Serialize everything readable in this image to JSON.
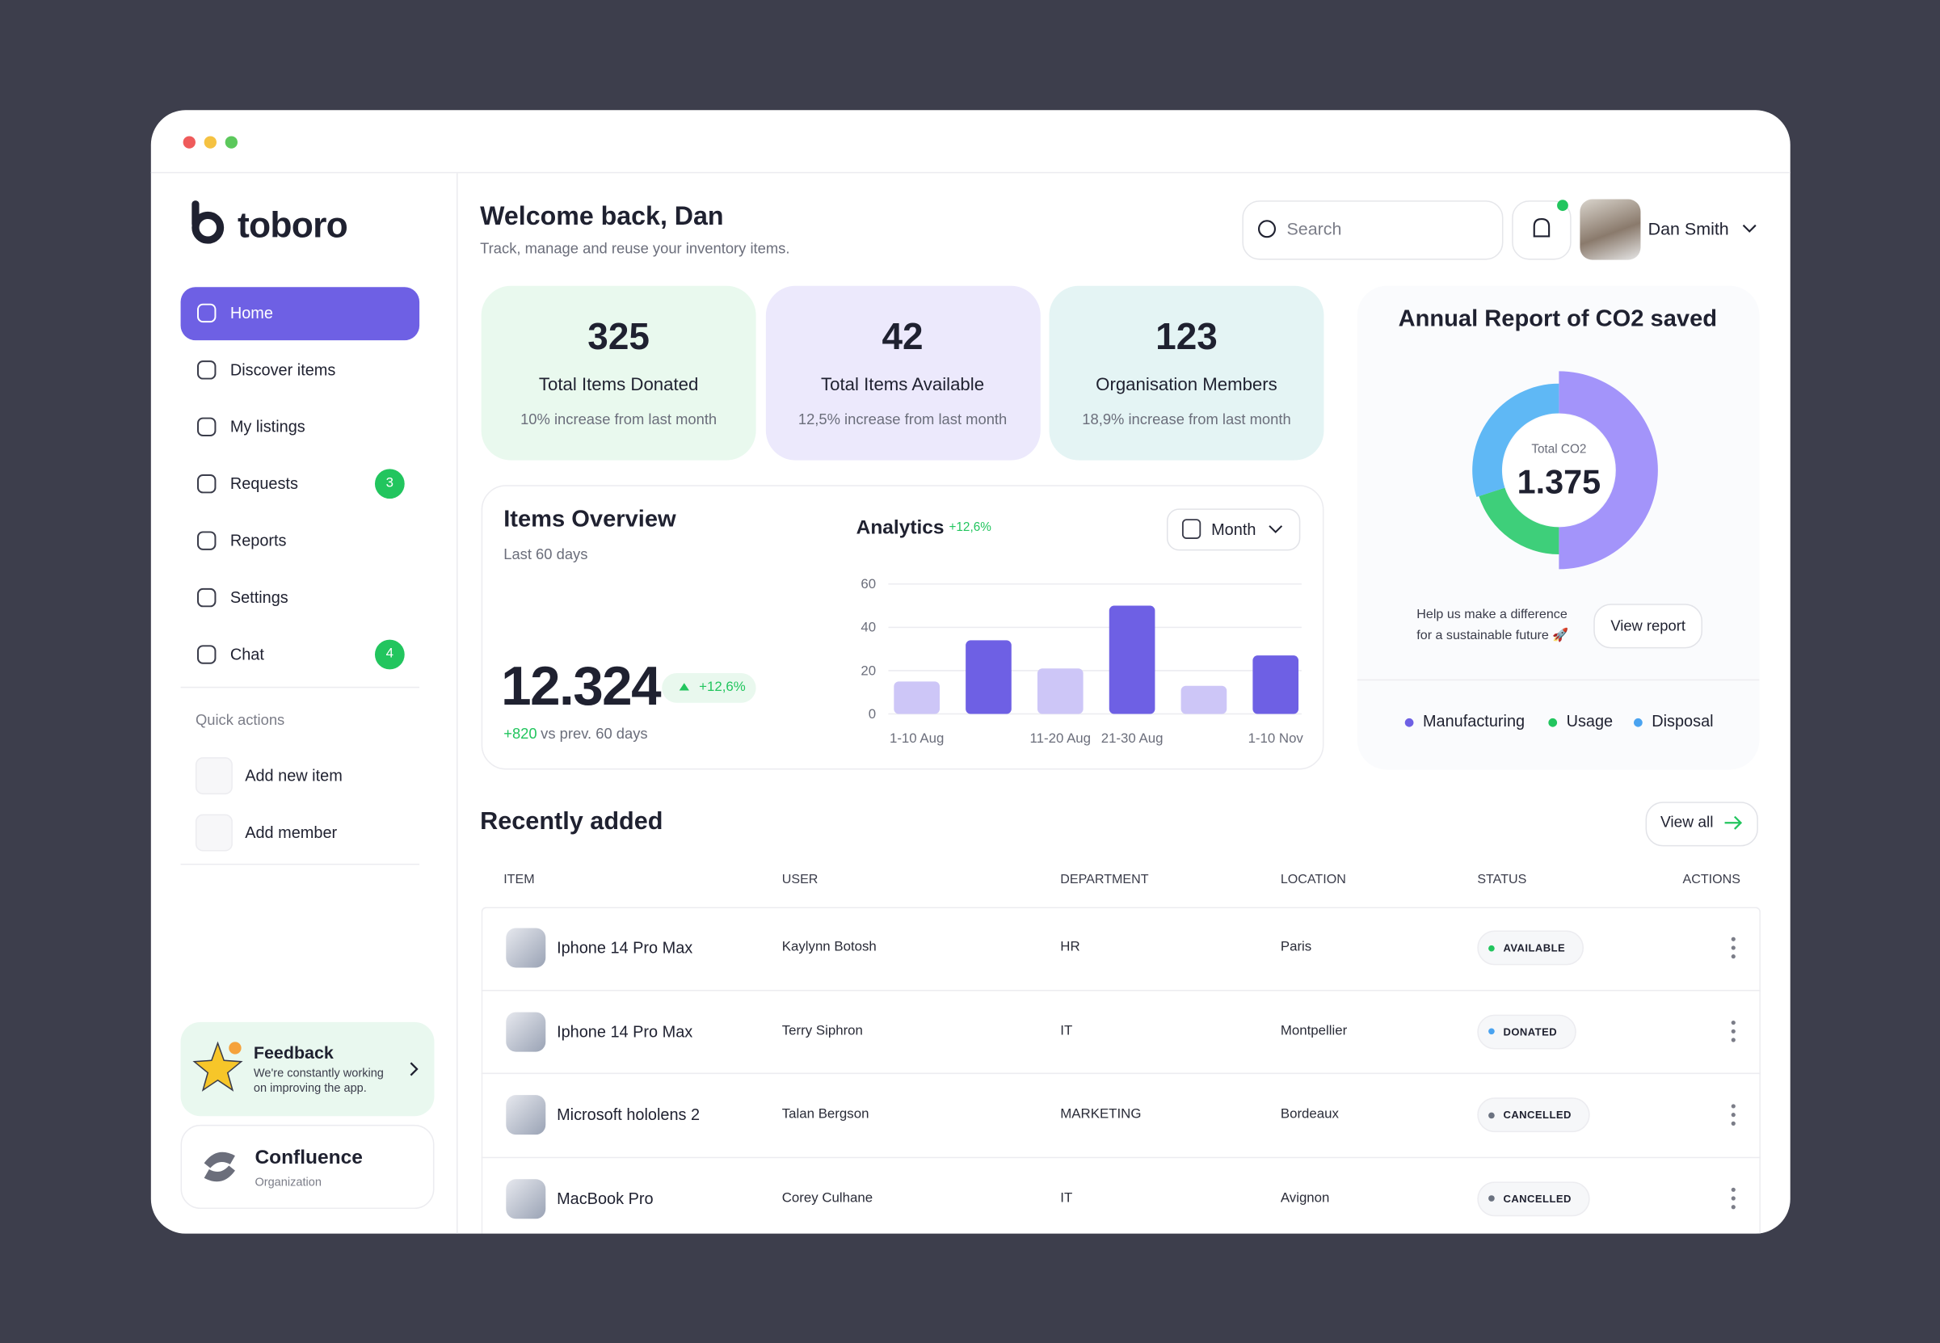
{
  "brand": "toboro",
  "nav": [
    {
      "label": "Home",
      "active": true
    },
    {
      "label": "Discover items"
    },
    {
      "label": "My listings"
    },
    {
      "label": "Requests",
      "badge": 3
    },
    {
      "label": "Reports"
    },
    {
      "label": "Settings"
    },
    {
      "label": "Chat",
      "badge": 4
    }
  ],
  "quick_actions": {
    "title": "Quick actions",
    "items": [
      "Add new item",
      "Add member"
    ]
  },
  "feedback": {
    "title": "Feedback",
    "text": [
      "We're constantly working",
      "on improving the app."
    ]
  },
  "org": {
    "name": "Confluence",
    "type": "Organization"
  },
  "header": {
    "title": "Welcome back, Dan",
    "subtitle": "Track, manage and reuse your inventory items.",
    "search_placeholder": "Search",
    "user": "Dan Smith"
  },
  "stats": [
    {
      "value": 325,
      "label": "Total Items Donated",
      "note": "10% increase from last month",
      "color": "#e9f9ee"
    },
    {
      "value": 42,
      "label": "Total Items Available",
      "note": "12,5% increase from last month",
      "color": "#ece9fc"
    },
    {
      "value": 123,
      "label": "Organisation Members",
      "note": "18,9% increase from last month",
      "color": "#e4f4f4"
    }
  ],
  "overview": {
    "title": "Items Overview",
    "period": "Last 60 days",
    "total": "12.324",
    "change": "+12,6%",
    "delta": "+820",
    "delta_text": "vs prev. 60 days"
  },
  "chart_data": [
    {
      "type": "bar",
      "title": "Analytics",
      "annotation": "+12,6%",
      "filter": "Month",
      "categories": [
        "1-10 Aug",
        null,
        "11-20 Aug",
        "21-30 Aug",
        null,
        "1-10 Nov"
      ],
      "values": [
        15,
        34,
        21,
        50,
        13,
        27
      ],
      "colors": [
        "#cdc6f7",
        "#6e60e4",
        "#cdc6f7",
        "#6e60e4",
        "#cdc6f7",
        "#6e60e4"
      ],
      "ylim": [
        0,
        60
      ],
      "yticks": [
        0,
        20,
        40,
        60
      ],
      "grid": true
    },
    {
      "type": "pie",
      "title": "Annual Report of CO2 saved",
      "center_label": "Total CO2",
      "center_value": "1.375",
      "categories": [
        "Manufacturing",
        "Usage",
        "Disposal"
      ],
      "values": [
        50,
        20,
        30
      ],
      "colors": [
        "#a394fa",
        "#3ecf7a",
        "#5fb8f5"
      ],
      "legend_colors": [
        "#6e60e4",
        "#22c55e",
        "#4aa3f0"
      ],
      "note": [
        "Help us make a difference",
        "for a sustainable future 🚀"
      ],
      "button": "View report"
    }
  ],
  "table": {
    "title": "Recently added",
    "view_all": "View all",
    "columns": [
      "ITEM",
      "USER",
      "DEPARTMENT",
      "LOCATION",
      "STATUS",
      "ACTIONS"
    ],
    "rows": [
      {
        "item": "Iphone 14 Pro Max",
        "user": "Kaylynn Botosh",
        "department": "HR",
        "location": "Paris",
        "status": "AVAILABLE",
        "status_color": "#22c55e"
      },
      {
        "item": "Iphone 14 Pro Max",
        "user": "Terry Siphron",
        "department": "IT",
        "location": "Montpellier",
        "status": "DONATED",
        "status_color": "#4aa3f0"
      },
      {
        "item": "Microsoft hololens 2",
        "user": "Talan Bergson",
        "department": "MARKETING",
        "location": "Bordeaux",
        "status": "CANCELLED",
        "status_color": "#6b7280"
      },
      {
        "item": "MacBook Pro",
        "user": "Corey Culhane",
        "department": "IT",
        "location": "Avignon",
        "status": "CANCELLED",
        "status_color": "#6b7280"
      }
    ]
  }
}
